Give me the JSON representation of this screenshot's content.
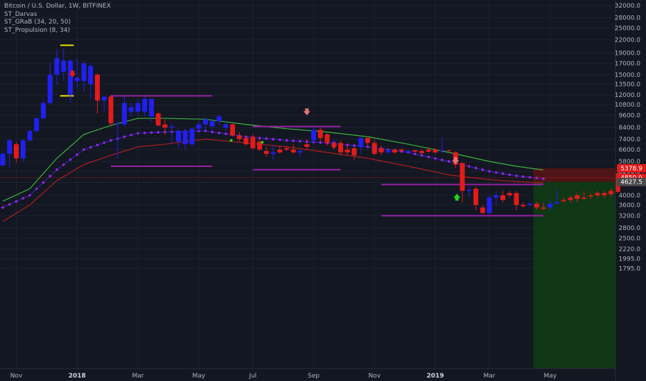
{
  "legend": {
    "symbol": "Bitcoin / U.S. Dollar, 1W, BITFINEX",
    "indicators": [
      "ST_Darvas",
      "ST_GRaB (34, 20, 50)",
      "ST_Propulsion (8, 34)"
    ]
  },
  "colors": {
    "background": "#131722",
    "grid": "#1e2230",
    "up": "#2020f0",
    "down": "#e31b1b",
    "green_line": "#3cb83c",
    "red_line": "#b01e1e",
    "blue_line": "#2a2aa8",
    "dots": "#a020f0",
    "darvas": "#9a1fa6",
    "yellow": "#f0e000",
    "box_red": "#5a1414",
    "box_green": "#0f3a14"
  },
  "price_labels": [
    {
      "text": "5378.9",
      "value": 5378.9,
      "color": "#e31b1b"
    },
    {
      "text": "4850.0",
      "value": 4850.0,
      "color": "#e31b1b"
    },
    {
      "text": "4627.5",
      "value": 4627.5,
      "color": "#4a4a4a"
    }
  ],
  "chart_data": {
    "type": "candlestick",
    "title": "Bitcoin / U.S. Dollar, 1W, BITFINEX",
    "y_scale": "log",
    "ylim": [
      1600,
      34000
    ],
    "y_ticks": [
      1795.0,
      1995.0,
      2220.0,
      2500.0,
      2800.0,
      3200.0,
      3600.0,
      4000.0,
      4600.0,
      5200.0,
      5800.0,
      6600.0,
      7400.0,
      8400.0,
      9600.0,
      10800.0,
      12000.0,
      13500.0,
      15000.0,
      17000.0,
      19000.0,
      22000.0,
      25000.0,
      28000.0,
      32000.0
    ],
    "y_tick_labels": [
      "1795.0",
      "1995.0",
      "2220.0",
      "2500.0",
      "2800.0",
      "3200.0",
      "3600.0",
      "4000.0",
      "4600.0",
      "5200.0",
      "5800.0",
      "6600.0",
      "7400.0",
      "8400.0",
      "9600.0",
      "10800.0",
      "12000.0",
      "13500.0",
      "15000.0",
      "17000.0",
      "19000.0",
      "22000.0",
      "25000.0",
      "28000.0",
      "32000.0"
    ],
    "x_labels": [
      {
        "label": "Nov",
        "week": 2,
        "bold": false
      },
      {
        "label": "2018",
        "week": 11,
        "bold": true
      },
      {
        "label": "Mar",
        "week": 20,
        "bold": false
      },
      {
        "label": "May",
        "week": 29,
        "bold": false
      },
      {
        "label": "Jul",
        "week": 37,
        "bold": false
      },
      {
        "label": "Sep",
        "week": 46,
        "bold": false
      },
      {
        "label": "Nov",
        "week": 55,
        "bold": false
      },
      {
        "label": "2019",
        "week": 64,
        "bold": true
      },
      {
        "label": "Mar",
        "week": 72,
        "bold": false
      },
      {
        "label": "May",
        "week": 81,
        "bold": false
      }
    ],
    "candles": [
      {
        "o": 5550,
        "h": 6500,
        "l": 5500,
        "c": 6300
      },
      {
        "o": 6300,
        "h": 7400,
        "l": 5400,
        "c": 7300
      },
      {
        "o": 7000,
        "h": 7200,
        "l": 5750,
        "c": 6000
      },
      {
        "o": 6000,
        "h": 7400,
        "l": 5800,
        "c": 7300
      },
      {
        "o": 7300,
        "h": 8200,
        "l": 7200,
        "c": 8100
      },
      {
        "o": 8100,
        "h": 9400,
        "l": 8000,
        "c": 9300
      },
      {
        "o": 9300,
        "h": 11200,
        "l": 9200,
        "c": 11000
      },
      {
        "o": 11000,
        "h": 17000,
        "l": 10800,
        "c": 15000
      },
      {
        "o": 15000,
        "h": 19800,
        "l": 13500,
        "c": 18000
      },
      {
        "o": 15500,
        "h": 20000,
        "l": 14000,
        "c": 17500
      },
      {
        "o": 12000,
        "h": 17800,
        "l": 11000,
        "c": 17500
      },
      {
        "o": 14000,
        "h": 18000,
        "l": 13000,
        "c": 14500
      },
      {
        "o": 14000,
        "h": 17500,
        "l": 12500,
        "c": 17000
      },
      {
        "o": 13500,
        "h": 17000,
        "l": 11500,
        "c": 16500
      },
      {
        "o": 15000,
        "h": 15200,
        "l": 9800,
        "c": 11300
      },
      {
        "o": 11300,
        "h": 11800,
        "l": 10000,
        "c": 11800
      },
      {
        "o": 11800,
        "h": 12000,
        "l": 8500,
        "c": 8800
      },
      {
        "o": 8800,
        "h": 9000,
        "l": 6000,
        "c": 8800
      },
      {
        "o": 8700,
        "h": 11800,
        "l": 8500,
        "c": 11000
      },
      {
        "o": 10000,
        "h": 11000,
        "l": 9500,
        "c": 10500
      },
      {
        "o": 10000,
        "h": 11500,
        "l": 9600,
        "c": 11000
      },
      {
        "o": 10000,
        "h": 11800,
        "l": 9500,
        "c": 11500
      },
      {
        "o": 9500,
        "h": 11500,
        "l": 9000,
        "c": 11500
      },
      {
        "o": 9800,
        "h": 10000,
        "l": 8500,
        "c": 8600
      },
      {
        "o": 8700,
        "h": 9200,
        "l": 7800,
        "c": 8400
      },
      {
        "o": 8400,
        "h": 8800,
        "l": 7000,
        "c": 8500
      },
      {
        "o": 7200,
        "h": 8200,
        "l": 6700,
        "c": 8100
      },
      {
        "o": 7000,
        "h": 8300,
        "l": 6600,
        "c": 8100
      },
      {
        "o": 7000,
        "h": 8400,
        "l": 6800,
        "c": 8300
      },
      {
        "o": 8300,
        "h": 9000,
        "l": 8000,
        "c": 8700
      },
      {
        "o": 8700,
        "h": 9400,
        "l": 8200,
        "c": 9200
      },
      {
        "o": 8500,
        "h": 9200,
        "l": 8200,
        "c": 9000
      },
      {
        "o": 9000,
        "h": 9800,
        "l": 8600,
        "c": 9500
      },
      {
        "o": 8400,
        "h": 9000,
        "l": 8000,
        "c": 8700
      },
      {
        "o": 8700,
        "h": 8800,
        "l": 7600,
        "c": 7700
      },
      {
        "o": 7700,
        "h": 8000,
        "l": 7200,
        "c": 7400
      },
      {
        "o": 7500,
        "h": 7700,
        "l": 6900,
        "c": 7000
      },
      {
        "o": 7600,
        "h": 7800,
        "l": 6600,
        "c": 6700
      },
      {
        "o": 7200,
        "h": 7400,
        "l": 6500,
        "c": 6600
      },
      {
        "o": 6500,
        "h": 6800,
        "l": 6100,
        "c": 6300
      },
      {
        "o": 6300,
        "h": 6900,
        "l": 5900,
        "c": 6400
      },
      {
        "o": 6600,
        "h": 6900,
        "l": 6300,
        "c": 6400
      },
      {
        "o": 6700,
        "h": 6900,
        "l": 6500,
        "c": 6600
      },
      {
        "o": 6600,
        "h": 7000,
        "l": 6300,
        "c": 6400
      },
      {
        "o": 6400,
        "h": 6600,
        "l": 6100,
        "c": 6500
      },
      {
        "o": 7000,
        "h": 7400,
        "l": 6600,
        "c": 6800
      },
      {
        "o": 7300,
        "h": 8500,
        "l": 7000,
        "c": 8200
      },
      {
        "o": 8200,
        "h": 8400,
        "l": 7200,
        "c": 7500
      },
      {
        "o": 7800,
        "h": 7900,
        "l": 6900,
        "c": 7100
      },
      {
        "o": 7000,
        "h": 7400,
        "l": 6800,
        "c": 7200
      },
      {
        "o": 7100,
        "h": 7300,
        "l": 6200,
        "c": 6400
      },
      {
        "o": 6600,
        "h": 6900,
        "l": 6200,
        "c": 6400
      },
      {
        "o": 6700,
        "h": 6800,
        "l": 5900,
        "c": 6200
      },
      {
        "o": 6800,
        "h": 7600,
        "l": 6300,
        "c": 7500
      },
      {
        "o": 7500,
        "h": 7600,
        "l": 6900,
        "c": 7100
      },
      {
        "o": 7100,
        "h": 7300,
        "l": 6200,
        "c": 6300
      },
      {
        "o": 6700,
        "h": 6900,
        "l": 6200,
        "c": 6400
      },
      {
        "o": 6400,
        "h": 6700,
        "l": 6300,
        "c": 6500
      },
      {
        "o": 6600,
        "h": 6700,
        "l": 6300,
        "c": 6400
      },
      {
        "o": 6600,
        "h": 6700,
        "l": 6400,
        "c": 6500
      },
      {
        "o": 6400,
        "h": 6600,
        "l": 6300,
        "c": 6500
      },
      {
        "o": 6550,
        "h": 6600,
        "l": 6400,
        "c": 6450
      },
      {
        "o": 6500,
        "h": 6600,
        "l": 6300,
        "c": 6350
      },
      {
        "o": 6600,
        "h": 6800,
        "l": 6400,
        "c": 6450
      },
      {
        "o": 6600,
        "h": 6700,
        "l": 6300,
        "c": 6400
      },
      {
        "o": 6500,
        "h": 7500,
        "l": 6300,
        "c": 6550
      },
      {
        "o": 6550,
        "h": 6600,
        "l": 6400,
        "c": 6500
      },
      {
        "o": 6400,
        "h": 6500,
        "l": 5400,
        "c": 5600
      },
      {
        "o": 5700,
        "h": 5700,
        "l": 3700,
        "c": 4200
      },
      {
        "o": 4200,
        "h": 4400,
        "l": 3900,
        "c": 4250
      },
      {
        "o": 4300,
        "h": 4400,
        "l": 3400,
        "c": 3600
      },
      {
        "o": 3500,
        "h": 3600,
        "l": 3250,
        "c": 3300
      },
      {
        "o": 3300,
        "h": 4000,
        "l": 3250,
        "c": 3900
      },
      {
        "o": 3900,
        "h": 4200,
        "l": 3600,
        "c": 4000
      },
      {
        "o": 4000,
        "h": 4200,
        "l": 3700,
        "c": 3800
      },
      {
        "o": 4100,
        "h": 4200,
        "l": 3900,
        "c": 4000
      },
      {
        "o": 4100,
        "h": 4200,
        "l": 3400,
        "c": 3600
      },
      {
        "o": 3600,
        "h": 3700,
        "l": 3500,
        "c": 3550
      },
      {
        "o": 3600,
        "h": 3700,
        "l": 3550,
        "c": 3650
      },
      {
        "o": 3650,
        "h": 3750,
        "l": 3400,
        "c": 3500
      },
      {
        "o": 3500,
        "h": 3700,
        "l": 3400,
        "c": 3450
      },
      {
        "o": 3500,
        "h": 3800,
        "l": 3400,
        "c": 3650
      },
      {
        "o": 3650,
        "h": 4300,
        "l": 3600,
        "c": 3700
      },
      {
        "o": 3800,
        "h": 3900,
        "l": 3700,
        "c": 3750
      },
      {
        "o": 3900,
        "h": 4000,
        "l": 3700,
        "c": 3800
      },
      {
        "o": 4000,
        "h": 4100,
        "l": 3700,
        "c": 3850
      },
      {
        "o": 3900,
        "h": 4200,
        "l": 3800,
        "c": 3850
      },
      {
        "o": 4000,
        "h": 4100,
        "l": 3850,
        "c": 3950
      },
      {
        "o": 4100,
        "h": 4200,
        "l": 3900,
        "c": 4000
      },
      {
        "o": 4100,
        "h": 4200,
        "l": 3900,
        "c": 4000
      },
      {
        "o": 4200,
        "h": 4300,
        "l": 3950,
        "c": 4050
      },
      {
        "o": 5100,
        "h": 5300,
        "l": 4100,
        "c": 4150
      }
    ],
    "green_line": [
      [
        0,
        3750
      ],
      [
        4,
        4300
      ],
      [
        8,
        6000
      ],
      [
        12,
        7800
      ],
      [
        16,
        8600
      ],
      [
        20,
        9300
      ],
      [
        24,
        9300
      ],
      [
        30,
        9200
      ],
      [
        36,
        8700
      ],
      [
        42,
        8300
      ],
      [
        48,
        8000
      ],
      [
        54,
        7600
      ],
      [
        60,
        7000
      ],
      [
        66,
        6400
      ],
      [
        72,
        5800
      ],
      [
        76,
        5500
      ],
      [
        80,
        5280
      ]
    ],
    "red_line": [
      [
        0,
        3000
      ],
      [
        4,
        3600
      ],
      [
        8,
        4700
      ],
      [
        12,
        5600
      ],
      [
        16,
        6200
      ],
      [
        20,
        6800
      ],
      [
        24,
        7000
      ],
      [
        30,
        7400
      ],
      [
        36,
        7100
      ],
      [
        42,
        6800
      ],
      [
        48,
        6400
      ],
      [
        54,
        6000
      ],
      [
        60,
        5500
      ],
      [
        66,
        5000
      ],
      [
        72,
        4750
      ],
      [
        76,
        4650
      ],
      [
        80,
        4580
      ]
    ],
    "blue_line": [
      [
        0,
        3500
      ],
      [
        4,
        4000
      ],
      [
        8,
        5300
      ],
      [
        12,
        6600
      ],
      [
        16,
        7300
      ],
      [
        20,
        7900
      ],
      [
        24,
        8000
      ],
      [
        30,
        8100
      ],
      [
        36,
        7600
      ],
      [
        42,
        7300
      ],
      [
        48,
        7100
      ],
      [
        54,
        6800
      ],
      [
        60,
        6400
      ],
      [
        66,
        5800
      ],
      [
        72,
        5200
      ],
      [
        76,
        4950
      ],
      [
        80,
        4800
      ]
    ],
    "dotted_line": [
      [
        0,
        3500
      ],
      [
        4,
        4000
      ],
      [
        8,
        5300
      ],
      [
        12,
        6600
      ],
      [
        16,
        7300
      ],
      [
        20,
        7900
      ],
      [
        24,
        8000
      ],
      [
        30,
        8100
      ],
      [
        36,
        7600
      ],
      [
        42,
        7300
      ],
      [
        48,
        7100
      ],
      [
        54,
        6800
      ],
      [
        60,
        6400
      ],
      [
        66,
        5800
      ],
      [
        72,
        5200
      ],
      [
        76,
        4950
      ],
      [
        80,
        4800
      ]
    ],
    "darvas_segments": [
      {
        "w0": 16,
        "w1": 31,
        "y": 11900
      },
      {
        "w0": 16,
        "w1": 31,
        "y": 5500
      },
      {
        "w0": 37,
        "w1": 50,
        "y": 8500
      },
      {
        "w0": 37,
        "w1": 50,
        "y": 5300
      },
      {
        "w0": 56,
        "w1": 80,
        "y": 4500
      },
      {
        "w0": 56,
        "w1": 80,
        "y": 3200
      }
    ],
    "yellow_segments": [
      {
        "w0": 8.5,
        "w1": 10.5,
        "y": 20700
      },
      {
        "w0": 8.5,
        "w1": 10.5,
        "y": 11900
      }
    ],
    "arrows": [
      {
        "week": 10.3,
        "y": 15000,
        "dir": "down",
        "color": "#e31b1b"
      },
      {
        "week": 45,
        "y": 9900,
        "dir": "down",
        "color": "#e57373"
      },
      {
        "week": 49,
        "y": 6850,
        "dir": "down",
        "color": "#e31b1b"
      },
      {
        "week": 67,
        "y": 5800,
        "dir": "down",
        "color": "#e57373"
      },
      {
        "week": 67.2,
        "y": 3950,
        "dir": "up",
        "color": "#1fd51f"
      }
    ],
    "small_markers": [
      {
        "week": 33.8,
        "y": 7300,
        "color": "#1fd51f"
      },
      {
        "week": 38.4,
        "y": 7150,
        "color": "#1fd51f"
      }
    ]
  }
}
